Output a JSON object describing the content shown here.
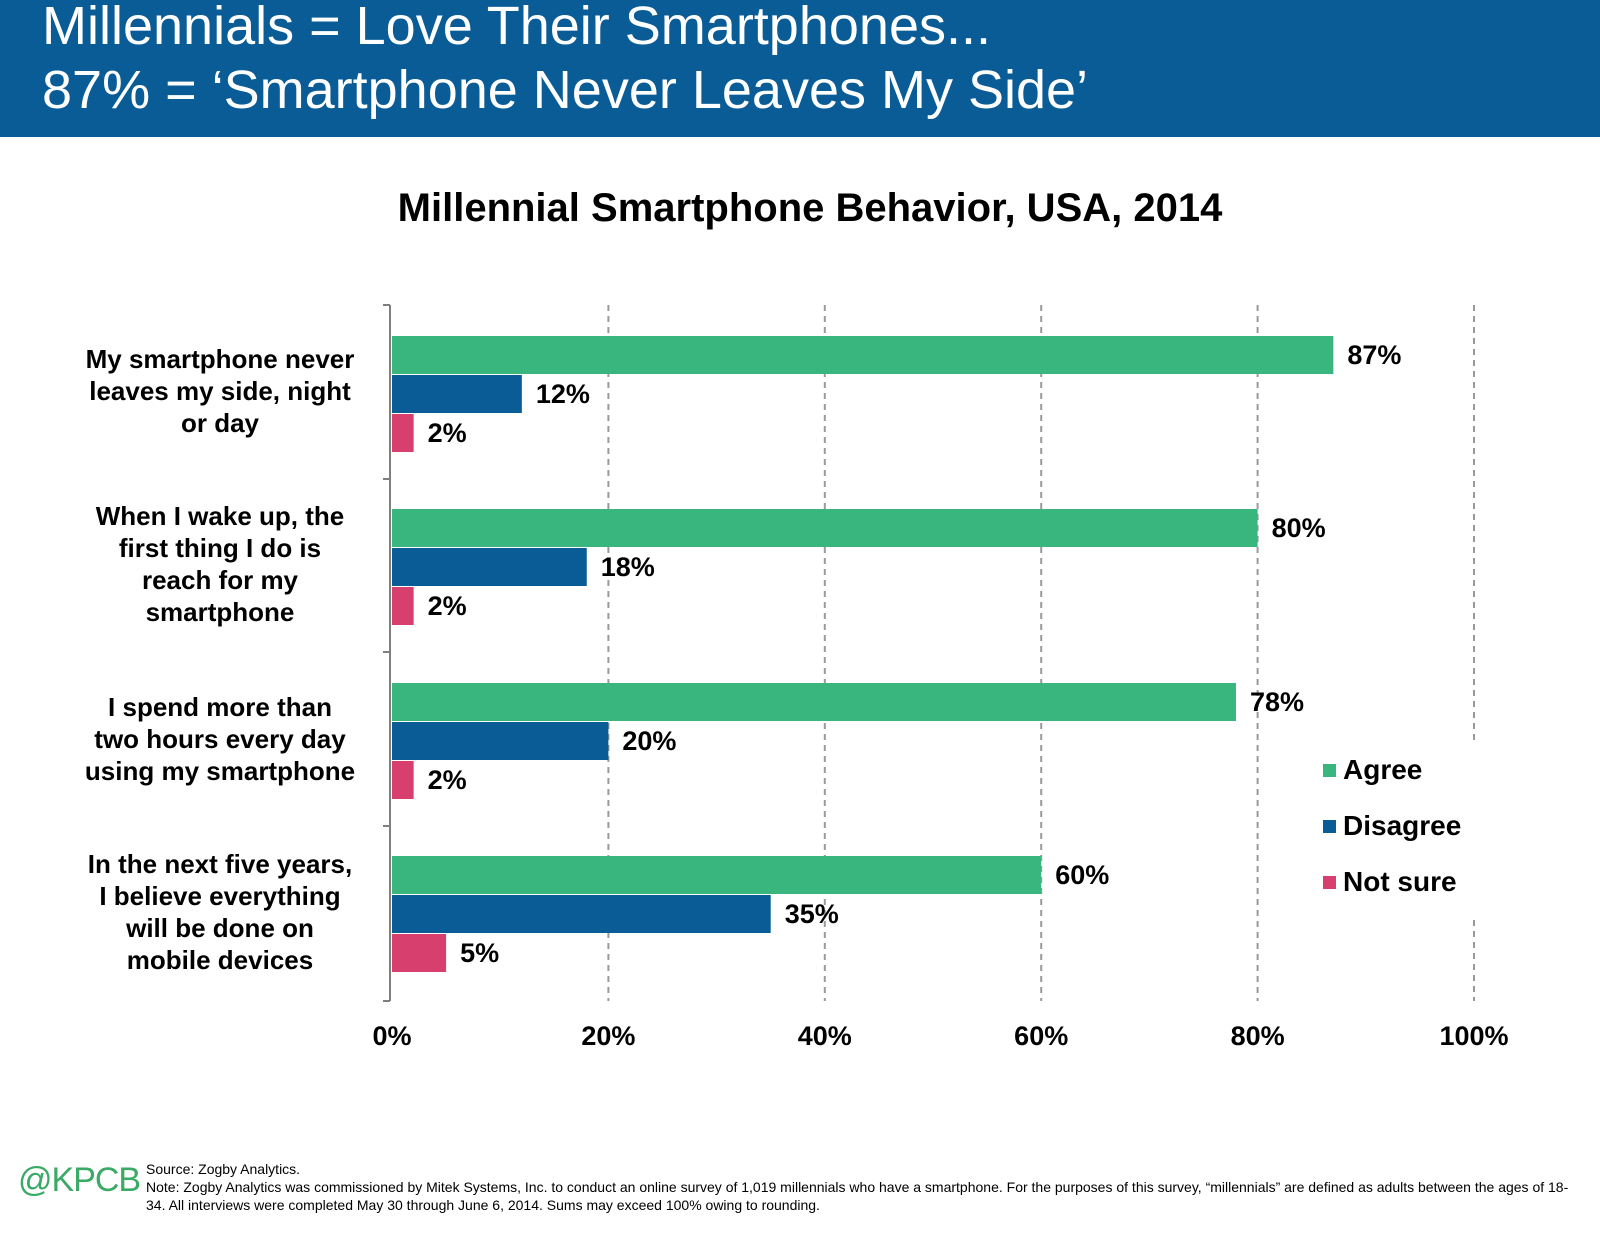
{
  "header": {
    "line1": "Millennials = Love Their Smartphones...",
    "line2": "87% = ‘Smartphone Never Leaves My Side’",
    "background": "#0a5c96"
  },
  "chart_data": {
    "type": "bar",
    "orientation": "horizontal",
    "title": "Millennial Smartphone Behavior, USA, 2014",
    "categories": [
      "My smartphone never leaves my side, night or day",
      "When I wake up, the first thing I do is reach for my smartphone",
      "I spend more than two hours every day using my smartphone",
      "In the next five years, I believe everything will be done on mobile devices"
    ],
    "category_lines": [
      [
        "My smartphone never",
        "leaves my side, night",
        "or day"
      ],
      [
        "When I wake up, the",
        "first thing I do is",
        "reach for my",
        "smartphone"
      ],
      [
        "I spend more than",
        "two hours every day",
        "using my smartphone"
      ],
      [
        "In the next five years,",
        "I believe everything",
        "will be done on",
        "mobile devices"
      ]
    ],
    "series": [
      {
        "name": "Agree",
        "color": "#38b67d",
        "values": [
          87,
          80,
          78,
          60
        ],
        "labels": [
          "87%",
          "80%",
          "78%",
          "60%"
        ]
      },
      {
        "name": "Disagree",
        "color": "#0a5c96",
        "values": [
          12,
          18,
          20,
          35
        ],
        "labels": [
          "12%",
          "18%",
          "20%",
          "35%"
        ]
      },
      {
        "name": "Not sure",
        "color": "#d63f6e",
        "values": [
          2,
          2,
          2,
          5
        ],
        "labels": [
          "2%",
          "2%",
          "2%",
          "5%"
        ]
      }
    ],
    "xlim": [
      0,
      100
    ],
    "xticks": [
      "0%",
      "20%",
      "40%",
      "60%",
      "80%",
      "100%"
    ],
    "grid": "vertical dashed",
    "legend_position": "right"
  },
  "footer": {
    "logo": "@KPCB",
    "source": "Source: Zogby Analytics.",
    "note": "Note: Zogby Analytics was commissioned by Mitek Systems, Inc. to conduct an online survey of 1,019 millennials who have a smartphone. For the purposes of this survey, “millennials” are defined as adults between the ages of 18-34. All interviews were completed May 30 through June 6, 2014. Sums may exceed 100% owing to rounding."
  }
}
